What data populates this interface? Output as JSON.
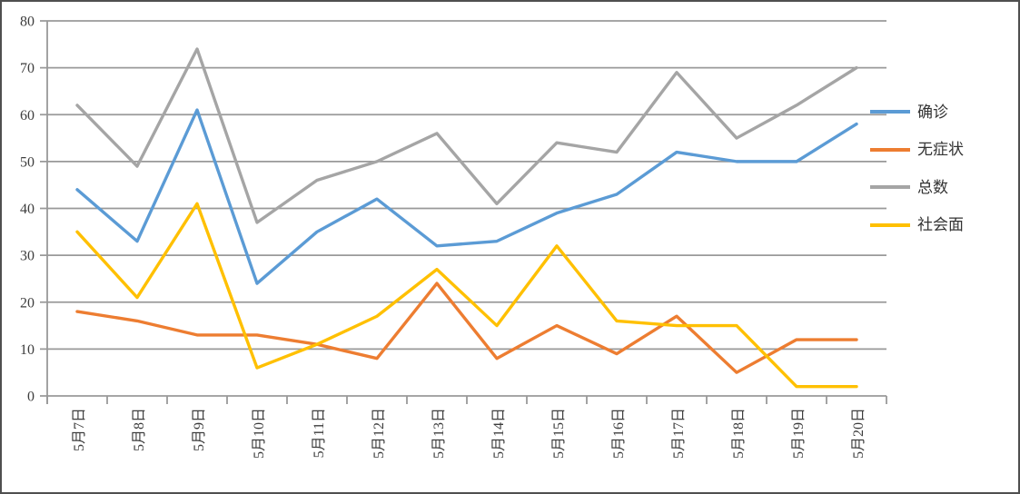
{
  "chart_data": {
    "type": "line",
    "title": "",
    "xlabel": "",
    "ylabel": "",
    "categories": [
      "5月7日",
      "5月8日",
      "5月9日",
      "5月10日",
      "5月11日",
      "5月12日",
      "5月13日",
      "5月14日",
      "5月15日",
      "5月16日",
      "5月17日",
      "5月18日",
      "5月19日",
      "5月20日"
    ],
    "series": [
      {
        "name": "确诊",
        "color": "#5B9BD5",
        "values": [
          44,
          33,
          61,
          24,
          35,
          42,
          32,
          33,
          39,
          43,
          52,
          50,
          50,
          58
        ]
      },
      {
        "name": "无症状",
        "color": "#ED7D31",
        "values": [
          18,
          16,
          13,
          13,
          11,
          8,
          24,
          8,
          15,
          9,
          17,
          5,
          12,
          12
        ]
      },
      {
        "name": "总数",
        "color": "#A5A5A5",
        "values": [
          62,
          49,
          74,
          37,
          46,
          50,
          56,
          41,
          54,
          52,
          69,
          55,
          62,
          70
        ]
      },
      {
        "name": "社会面",
        "color": "#FFC000",
        "values": [
          35,
          21,
          41,
          6,
          11,
          17,
          27,
          15,
          32,
          16,
          15,
          15,
          2,
          2
        ]
      }
    ],
    "ylim": [
      0,
      80
    ],
    "yticks": [
      0,
      10,
      20,
      30,
      40,
      50,
      60,
      70,
      80
    ],
    "grid": "horizontal",
    "legend_position": "right",
    "x_label_rotation": -90
  },
  "colors": {
    "gridline": "#999999",
    "axis": "#999999",
    "tick_label": "#3d3d3d",
    "frame_border": "#4f4f4f",
    "background": "#ffffff"
  }
}
